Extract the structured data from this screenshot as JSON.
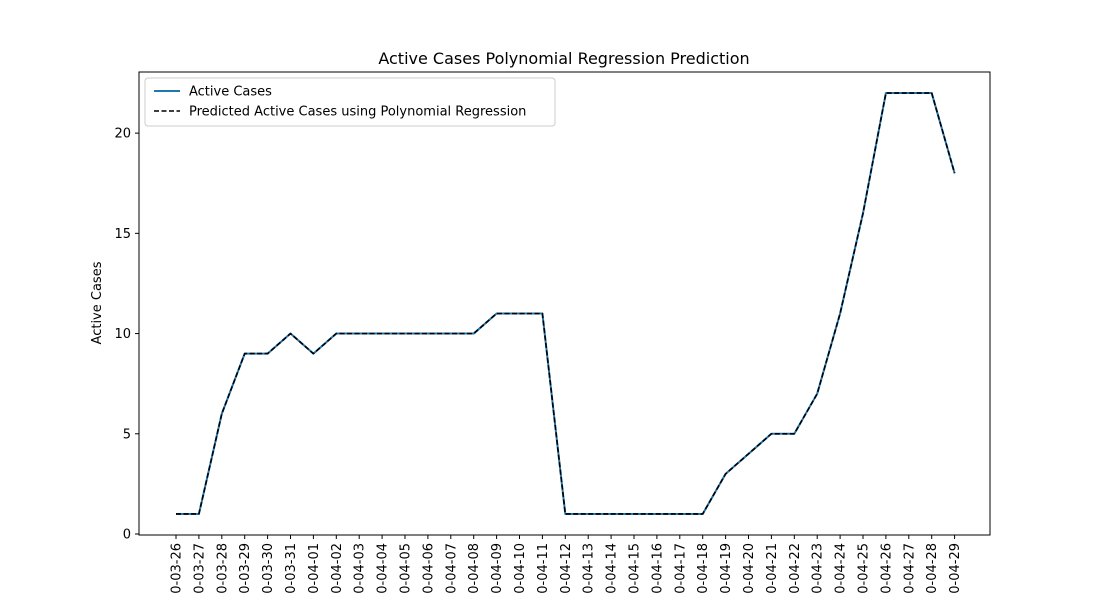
{
  "chart_data": {
    "type": "line",
    "title": "Active Cases Polynomial Regression Prediction",
    "xlabel": "",
    "ylabel": "Active Cases",
    "ylim": [
      -0.05,
      23.05
    ],
    "yticks": [
      0,
      5,
      10,
      15,
      20
    ],
    "grid": false,
    "legend_position": "upper-left",
    "categories": [
      "0-03-26",
      "0-03-27",
      "0-03-28",
      "0-03-29",
      "0-03-30",
      "0-03-31",
      "0-04-01",
      "0-04-02",
      "0-04-03",
      "0-04-04",
      "0-04-05",
      "0-04-06",
      "0-04-07",
      "0-04-08",
      "0-04-09",
      "0-04-10",
      "0-04-11",
      "0-04-12",
      "0-04-13",
      "0-04-14",
      "0-04-15",
      "0-04-16",
      "0-04-17",
      "0-04-18",
      "0-04-19",
      "0-04-20",
      "0-04-21",
      "0-04-22",
      "0-04-23",
      "0-04-24",
      "0-04-25",
      "0-04-26",
      "0-04-27",
      "0-04-28",
      "0-04-29"
    ],
    "series": [
      {
        "name": "Active Cases",
        "color": "#1f77b4",
        "style": "solid",
        "values": [
          1,
          1,
          6,
          9,
          9,
          10,
          9,
          10,
          10,
          10,
          10,
          10,
          10,
          10,
          11,
          11,
          11,
          1,
          1,
          1,
          1,
          1,
          1,
          1,
          3,
          4,
          5,
          5,
          7,
          11,
          16,
          22,
          22,
          22,
          18
        ]
      },
      {
        "name": "Predicted Active Cases using Polynomial Regression",
        "color": "#000000",
        "style": "dashed",
        "values": [
          1,
          1,
          6,
          9,
          9,
          10,
          9,
          10,
          10,
          10,
          10,
          10,
          10,
          10,
          11,
          11,
          11,
          1,
          1,
          1,
          1,
          1,
          1,
          1,
          3,
          4,
          5,
          5,
          7,
          11,
          16,
          22,
          22,
          22,
          18
        ]
      }
    ]
  }
}
